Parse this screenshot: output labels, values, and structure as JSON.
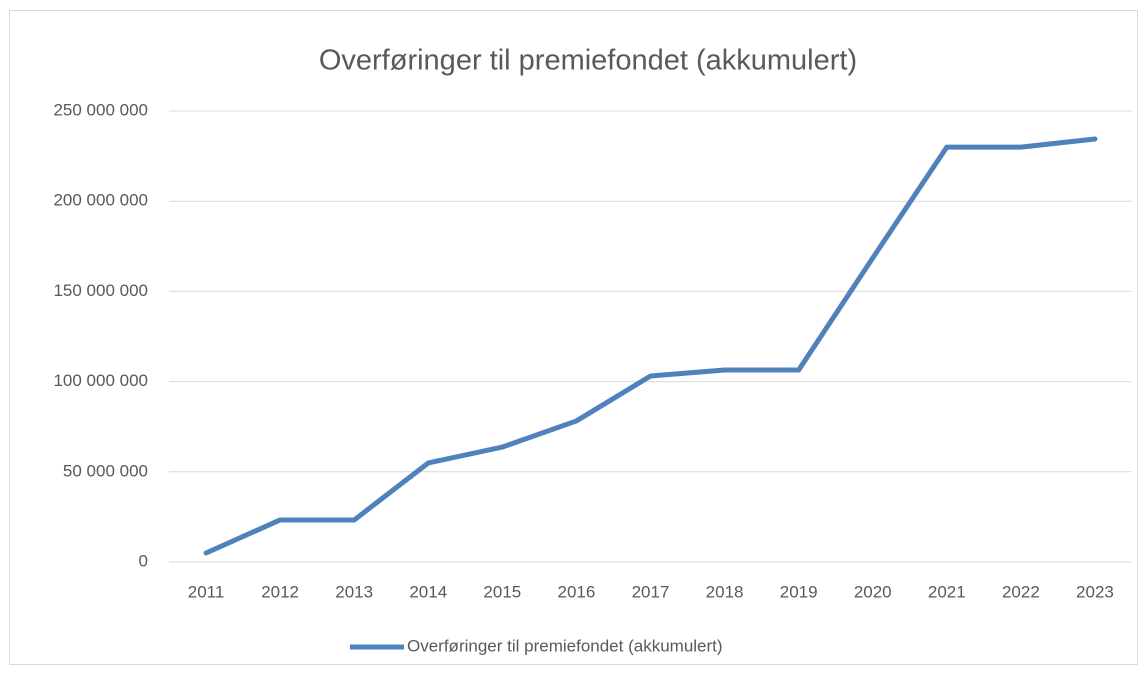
{
  "chart_data": {
    "type": "line",
    "title": "Overføringer til premiefondet (akkumulert)",
    "categories": [
      "2011",
      "2012",
      "2013",
      "2014",
      "2015",
      "2016",
      "2017",
      "2018",
      "2019",
      "2020",
      "2021",
      "2022",
      "2023"
    ],
    "series": [
      {
        "name": "Overføringer til premiefondet (akkumulert)",
        "color": "#4f81bd",
        "values": [
          5000000,
          23300000,
          23300000,
          54900000,
          63700000,
          78200000,
          103100000,
          106400000,
          106400000,
          168500000,
          230000000,
          230000000,
          234500000
        ]
      }
    ],
    "ylim": [
      0,
      250000000
    ],
    "yticks": [
      0,
      {
        "value": 50000000,
        "label": "50 000 000"
      },
      {
        "value": 100000000,
        "label": "100 000 000"
      },
      {
        "value": 150000000,
        "label": "150 000 000"
      },
      {
        "value": 200000000,
        "label": "200 000 000"
      },
      {
        "value": 250000000,
        "label": "250 000 000"
      }
    ],
    "grid": true,
    "legend": "bottom"
  }
}
